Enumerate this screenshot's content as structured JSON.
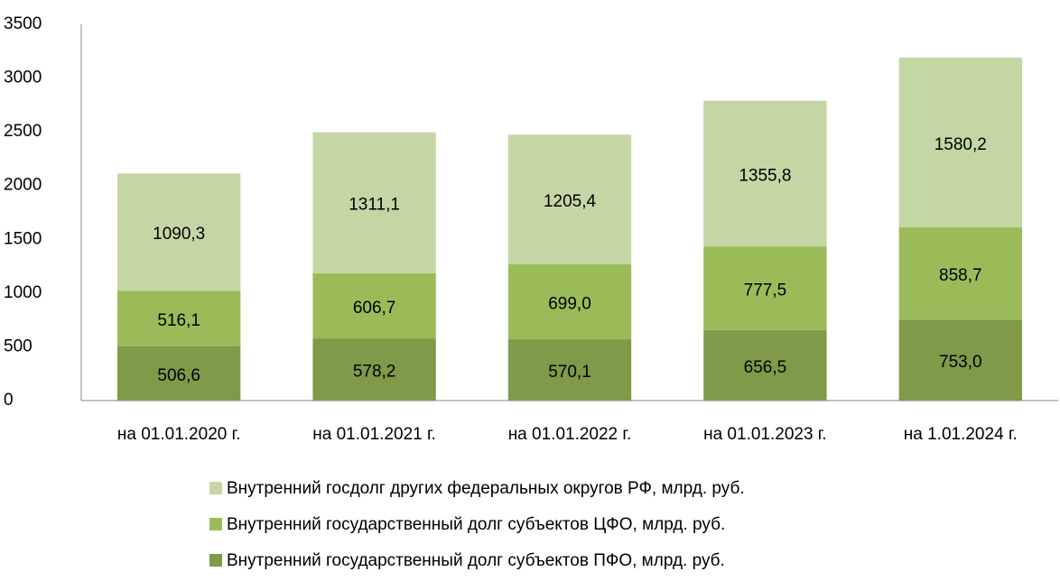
{
  "chart_data": {
    "type": "stacked_bar",
    "categories": [
      "на 01.01.2020 г.",
      "на 01.01.2021 г.",
      "на 01.01.2022 г.",
      "на 01.01.2023 г.",
      "на 1.01.2024 г."
    ],
    "series": [
      {
        "name": "Внутренний государственный долг субъектов ПФО, млрд. руб.",
        "color": "#7f9a48",
        "values": [
          506.6,
          578.2,
          570.1,
          656.5,
          753.0
        ],
        "value_labels": [
          "506,6",
          "578,2",
          "570,1",
          "656,5",
          "753,0"
        ]
      },
      {
        "name": "Внутренний государственный долг субъектов ЦФО, млрд. руб.",
        "color": "#9bbb59",
        "values": [
          516.1,
          606.7,
          699.0,
          777.5,
          858.7
        ],
        "value_labels": [
          "516,1",
          "606,7",
          "699,0",
          "777,5",
          "858,7"
        ]
      },
      {
        "name": "Внутренний госдолг других федеральных округов РФ, млрд. руб.",
        "color": "#c5d6a5",
        "values": [
          1090.3,
          1311.1,
          1205.4,
          1355.8,
          1580.2
        ],
        "value_labels": [
          "1090,3",
          "1311,1",
          "1205,4",
          "1355,8",
          "1580,2"
        ]
      }
    ],
    "ylim": [
      0,
      3500
    ],
    "yticks": [
      0,
      500,
      1000,
      1500,
      2000,
      2500,
      3000,
      3500
    ],
    "grid": false
  }
}
